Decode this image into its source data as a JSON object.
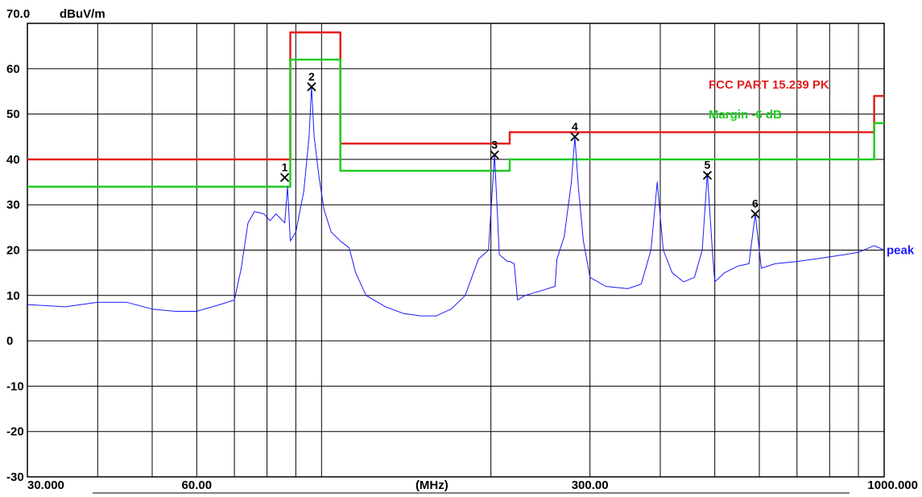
{
  "chart_data": {
    "type": "line",
    "title": "",
    "ylabel": "dBuV/m",
    "xlabel": "(MHz)",
    "x_scale": "log",
    "xlim": [
      30,
      1000
    ],
    "ylim": [
      -30,
      70
    ],
    "grid": true,
    "x_ticks": [
      {
        "value": 30,
        "label": "30.000"
      },
      {
        "value": 60,
        "label": "60.00"
      },
      {
        "value": 300,
        "label": "300.00"
      },
      {
        "value": 1000,
        "label": "1000.000"
      }
    ],
    "x_unit_label_at": 150,
    "y_ticks": [
      {
        "value": 70,
        "label": "70.0"
      },
      {
        "value": 60,
        "label": "60"
      },
      {
        "value": 50,
        "label": "50"
      },
      {
        "value": 40,
        "label": "40"
      },
      {
        "value": 30,
        "label": "30"
      },
      {
        "value": 20,
        "label": "20"
      },
      {
        "value": 10,
        "label": "10"
      },
      {
        "value": 0,
        "label": "0"
      },
      {
        "value": -10,
        "label": "-10"
      },
      {
        "value": -20,
        "label": "-20"
      },
      {
        "value": -30,
        "label": "-30"
      }
    ],
    "minor_x_gridlines": [
      40,
      50,
      60,
      70,
      80,
      90,
      100,
      200,
      300,
      400,
      500,
      600,
      700,
      800,
      900
    ],
    "series": [
      {
        "name": "FCC PART 15.239 PK",
        "color": "#e32020",
        "points": [
          [
            30,
            40
          ],
          [
            88,
            40
          ],
          [
            88,
            68
          ],
          [
            108,
            68
          ],
          [
            108,
            43.5
          ],
          [
            216,
            43.5
          ],
          [
            216,
            46
          ],
          [
            960,
            46
          ],
          [
            960,
            54
          ],
          [
            1000,
            54
          ]
        ]
      },
      {
        "name": "Margin -6 dB",
        "color": "#22cc22",
        "points": [
          [
            30,
            34
          ],
          [
            88,
            34
          ],
          [
            88,
            62
          ],
          [
            108,
            62
          ],
          [
            108,
            37.5
          ],
          [
            216,
            37.5
          ],
          [
            216,
            40
          ],
          [
            960,
            40
          ],
          [
            960,
            48
          ],
          [
            1000,
            48
          ]
        ]
      },
      {
        "name": "peak",
        "color": "#1a1aff",
        "points": [
          [
            30,
            8
          ],
          [
            35,
            7.5
          ],
          [
            40,
            8.5
          ],
          [
            45,
            8.5
          ],
          [
            50,
            7
          ],
          [
            55,
            6.5
          ],
          [
            60,
            6.5
          ],
          [
            66,
            8
          ],
          [
            70,
            9
          ],
          [
            72,
            16
          ],
          [
            74,
            26
          ],
          [
            76,
            28.5
          ],
          [
            79,
            28
          ],
          [
            81,
            26.5
          ],
          [
            83,
            28
          ],
          [
            86,
            26
          ],
          [
            87,
            34
          ],
          [
            88,
            22
          ],
          [
            90,
            24
          ],
          [
            93,
            33
          ],
          [
            95,
            45
          ],
          [
            96,
            56
          ],
          [
            97,
            45
          ],
          [
            99,
            36
          ],
          [
            101,
            29
          ],
          [
            104,
            24
          ],
          [
            108,
            22
          ],
          [
            112,
            20.5
          ],
          [
            115,
            15
          ],
          [
            120,
            10
          ],
          [
            130,
            7.5
          ],
          [
            140,
            6
          ],
          [
            150,
            5.5
          ],
          [
            160,
            5.5
          ],
          [
            170,
            7
          ],
          [
            180,
            10
          ],
          [
            190,
            18
          ],
          [
            198,
            20
          ],
          [
            203,
            41
          ],
          [
            207,
            19
          ],
          [
            214,
            17.5
          ],
          [
            216,
            17.5
          ],
          [
            220,
            17
          ],
          [
            223,
            9
          ],
          [
            230,
            10
          ],
          [
            245,
            11
          ],
          [
            260,
            12
          ],
          [
            262,
            18
          ],
          [
            270,
            23
          ],
          [
            278,
            35
          ],
          [
            282,
            45
          ],
          [
            286,
            34
          ],
          [
            292,
            22
          ],
          [
            300,
            14
          ],
          [
            320,
            12
          ],
          [
            350,
            11.5
          ],
          [
            370,
            12.5
          ],
          [
            385,
            20
          ],
          [
            395,
            35
          ],
          [
            405,
            20
          ],
          [
            420,
            15
          ],
          [
            440,
            13
          ],
          [
            460,
            14
          ],
          [
            475,
            20
          ],
          [
            485,
            37
          ],
          [
            495,
            20
          ],
          [
            500,
            13
          ],
          [
            520,
            15
          ],
          [
            550,
            16.5
          ],
          [
            575,
            17
          ],
          [
            590,
            28
          ],
          [
            605,
            16
          ],
          [
            640,
            17
          ],
          [
            700,
            17.5
          ],
          [
            750,
            18
          ],
          [
            800,
            18.5
          ],
          [
            850,
            19
          ],
          [
            900,
            19.5
          ],
          [
            940,
            20.5
          ],
          [
            960,
            21
          ],
          [
            1000,
            20
          ]
        ]
      }
    ],
    "peak_label": "peak",
    "markers": [
      {
        "label": "1",
        "x": 86,
        "y": 36
      },
      {
        "label": "2",
        "x": 96,
        "y": 56
      },
      {
        "label": "3",
        "x": 203,
        "y": 41
      },
      {
        "label": "4",
        "x": 282,
        "y": 45
      },
      {
        "label": "5",
        "x": 485,
        "y": 36.5
      },
      {
        "label": "6",
        "x": 590,
        "y": 28
      }
    ],
    "legend": [
      {
        "text": "FCC PART 15.239 PK",
        "color": "#e32020"
      },
      {
        "text": "Margin -6 dB",
        "color": "#22cc22"
      }
    ]
  }
}
